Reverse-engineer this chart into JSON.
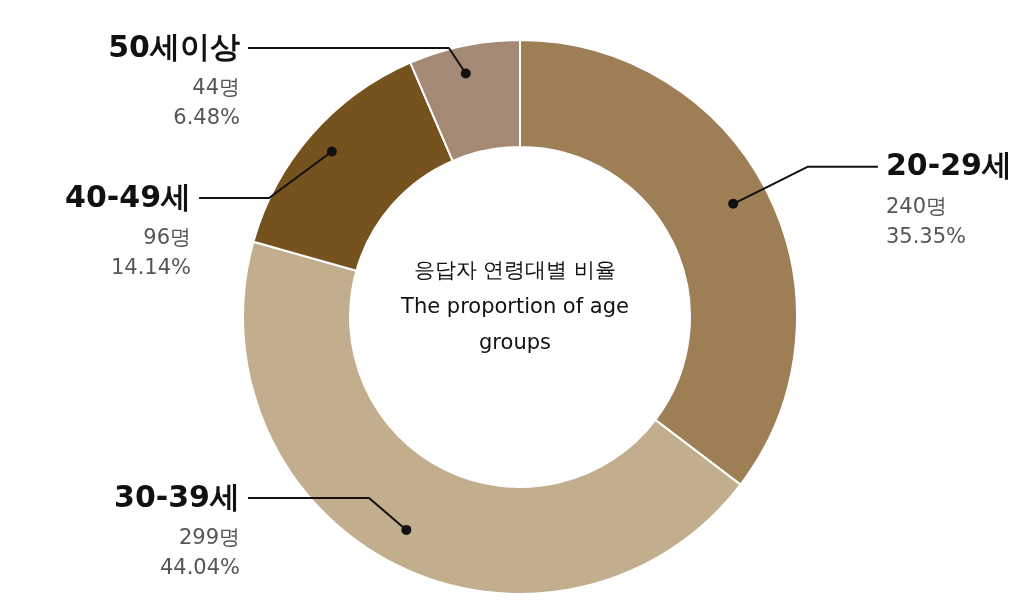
{
  "chart_data": {
    "type": "donut",
    "title": "응답자 연령대별 비율",
    "subtitle": "The proportion of age groups",
    "categories": [
      "20-29세",
      "30-39세",
      "40-49세",
      "50세이상"
    ],
    "values": [
      240,
      299,
      96,
      44
    ],
    "colors": [
      "#9e7e55",
      "#c2ae8d",
      "#75521e",
      "#a48a74"
    ],
    "value_labels": [
      "240명\n35.35%",
      "299명\n44.04%",
      "96명\n14.14%",
      "44명\n6.48%"
    ],
    "legend": false
  }
}
